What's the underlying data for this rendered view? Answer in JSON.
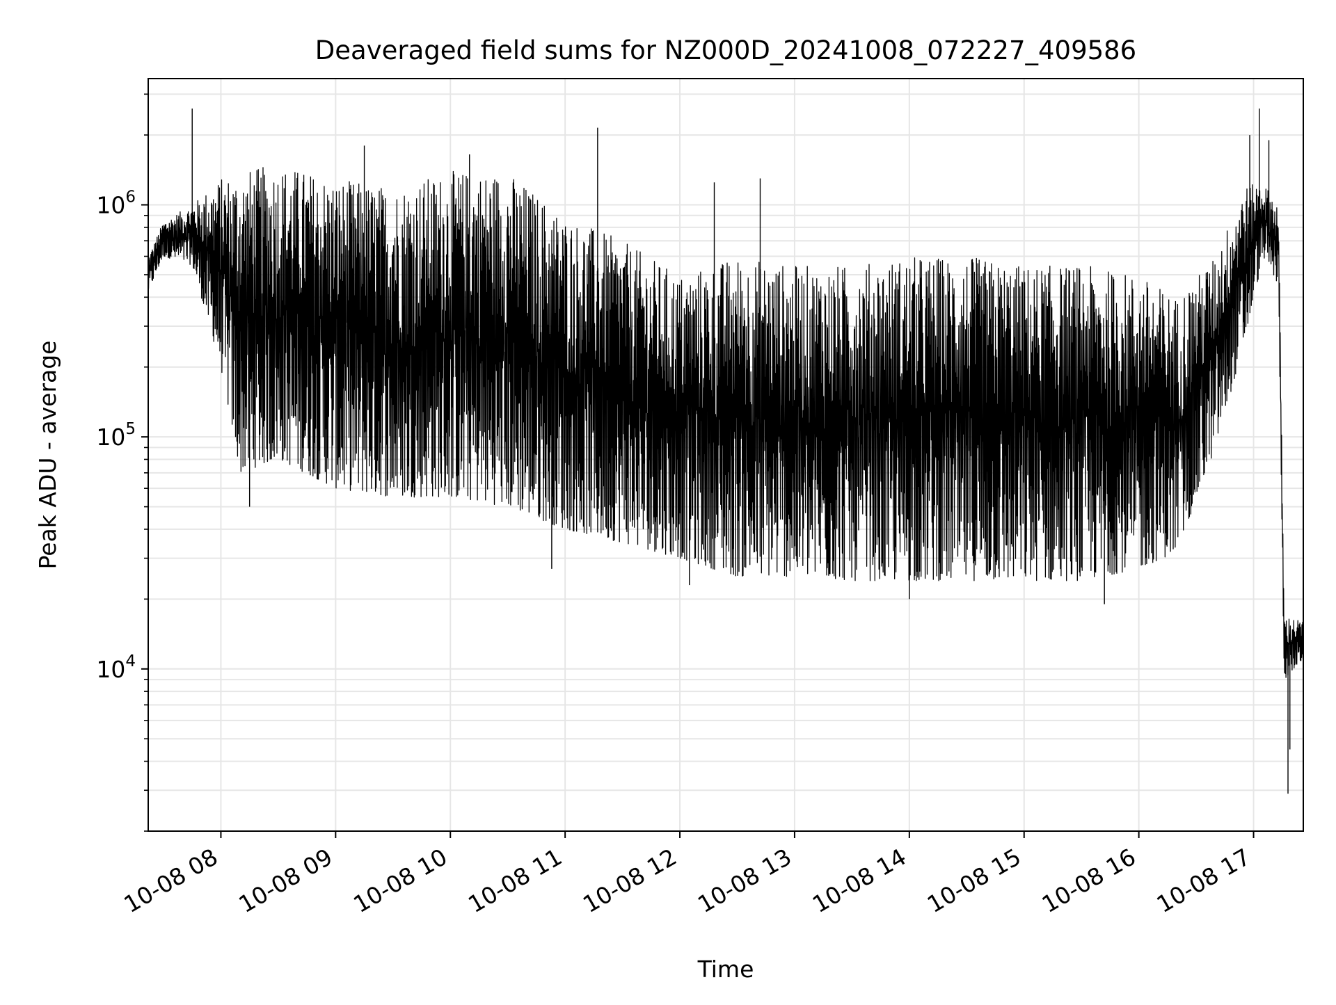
{
  "chart_data": {
    "type": "line",
    "title": "Deaveraged field sums for NZ000D_20241008_072227_409586",
    "xlabel": "Time",
    "ylabel": "Peak ADU - average",
    "yscale": "log",
    "ylim": [
      2000,
      3500000
    ],
    "xlim": [
      "2024-10-08T07:22",
      "2024-10-08T17:26"
    ],
    "grid": true,
    "line_color": "#000000",
    "grid_color": "#e6e6e6",
    "x_ticks": [
      {
        "value": "2024-10-08T08:00",
        "label": "10-08 08"
      },
      {
        "value": "2024-10-08T09:00",
        "label": "10-08 09"
      },
      {
        "value": "2024-10-08T10:00",
        "label": "10-08 10"
      },
      {
        "value": "2024-10-08T11:00",
        "label": "10-08 11"
      },
      {
        "value": "2024-10-08T12:00",
        "label": "10-08 12"
      },
      {
        "value": "2024-10-08T13:00",
        "label": "10-08 13"
      },
      {
        "value": "2024-10-08T14:00",
        "label": "10-08 14"
      },
      {
        "value": "2024-10-08T15:00",
        "label": "10-08 15"
      },
      {
        "value": "2024-10-08T16:00",
        "label": "10-08 16"
      },
      {
        "value": "2024-10-08T17:00",
        "label": "10-08 17"
      }
    ],
    "y_ticks": [
      {
        "value": 10000,
        "base": "10",
        "exp": "4"
      },
      {
        "value": 100000,
        "base": "10",
        "exp": "5"
      },
      {
        "value": 1000000,
        "base": "10",
        "exp": "6"
      }
    ],
    "series": [
      {
        "color": "#000000",
        "envelope": [
          {
            "t": "2024-10-08T07:22",
            "low": 420000,
            "high": 600000
          },
          {
            "t": "2024-10-08T07:30",
            "low": 600000,
            "high": 850000
          },
          {
            "t": "2024-10-08T07:45",
            "low": 550000,
            "high": 1000000
          },
          {
            "t": "2024-10-08T08:00",
            "low": 200000,
            "high": 1300000
          },
          {
            "t": "2024-10-08T08:10",
            "low": 70000,
            "high": 1400000
          },
          {
            "t": "2024-10-08T08:30",
            "low": 80000,
            "high": 1500000
          },
          {
            "t": "2024-10-08T09:00",
            "low": 60000,
            "high": 1300000
          },
          {
            "t": "2024-10-08T09:30",
            "low": 55000,
            "high": 1200000
          },
          {
            "t": "2024-10-08T10:00",
            "low": 55000,
            "high": 1400000
          },
          {
            "t": "2024-10-08T10:30",
            "low": 50000,
            "high": 1400000
          },
          {
            "t": "2024-10-08T11:00",
            "low": 40000,
            "high": 900000
          },
          {
            "t": "2024-10-08T11:30",
            "low": 35000,
            "high": 700000
          },
          {
            "t": "2024-10-08T12:00",
            "low": 30000,
            "high": 500000
          },
          {
            "t": "2024-10-08T12:30",
            "low": 25000,
            "high": 600000
          },
          {
            "t": "2024-10-08T13:00",
            "low": 25000,
            "high": 550000
          },
          {
            "t": "2024-10-08T13:30",
            "low": 24000,
            "high": 550000
          },
          {
            "t": "2024-10-08T14:00",
            "low": 24000,
            "high": 600000
          },
          {
            "t": "2024-10-08T14:30",
            "low": 24000,
            "high": 600000
          },
          {
            "t": "2024-10-08T15:00",
            "low": 24000,
            "high": 550000
          },
          {
            "t": "2024-10-08T15:30",
            "low": 24000,
            "high": 550000
          },
          {
            "t": "2024-10-08T16:00",
            "low": 27000,
            "high": 500000
          },
          {
            "t": "2024-10-08T16:20",
            "low": 32000,
            "high": 400000
          },
          {
            "t": "2024-10-08T16:40",
            "low": 90000,
            "high": 600000
          },
          {
            "t": "2024-10-08T16:55",
            "low": 250000,
            "high": 1200000
          },
          {
            "t": "2024-10-08T17:05",
            "low": 600000,
            "high": 1250000
          },
          {
            "t": "2024-10-08T17:13",
            "low": 450000,
            "high": 1000000
          },
          {
            "t": "2024-10-08T17:16",
            "low": 9000,
            "high": 17000
          },
          {
            "t": "2024-10-08T17:26",
            "low": 11000,
            "high": 16000
          }
        ],
        "spikes": [
          {
            "t": "2024-10-08T07:45",
            "value": 2600000
          },
          {
            "t": "2024-10-08T09:15",
            "value": 1800000
          },
          {
            "t": "2024-10-08T10:10",
            "value": 1650000
          },
          {
            "t": "2024-10-08T11:17",
            "value": 2150000
          },
          {
            "t": "2024-10-08T12:18",
            "value": 1250000
          },
          {
            "t": "2024-10-08T12:42",
            "value": 1300000
          },
          {
            "t": "2024-10-08T16:58",
            "value": 2000000
          },
          {
            "t": "2024-10-08T17:03",
            "value": 2600000
          },
          {
            "t": "2024-10-08T17:08",
            "value": 1900000
          }
        ],
        "dips": [
          {
            "t": "2024-10-08T08:15",
            "value": 50000
          },
          {
            "t": "2024-10-08T10:53",
            "value": 27000
          },
          {
            "t": "2024-10-08T12:05",
            "value": 23000
          },
          {
            "t": "2024-10-08T14:00",
            "value": 20000
          },
          {
            "t": "2024-10-08T15:42",
            "value": 19000
          },
          {
            "t": "2024-10-08T17:18",
            "value": 2900
          },
          {
            "t": "2024-10-08T17:19",
            "value": 4500
          }
        ]
      }
    ]
  }
}
